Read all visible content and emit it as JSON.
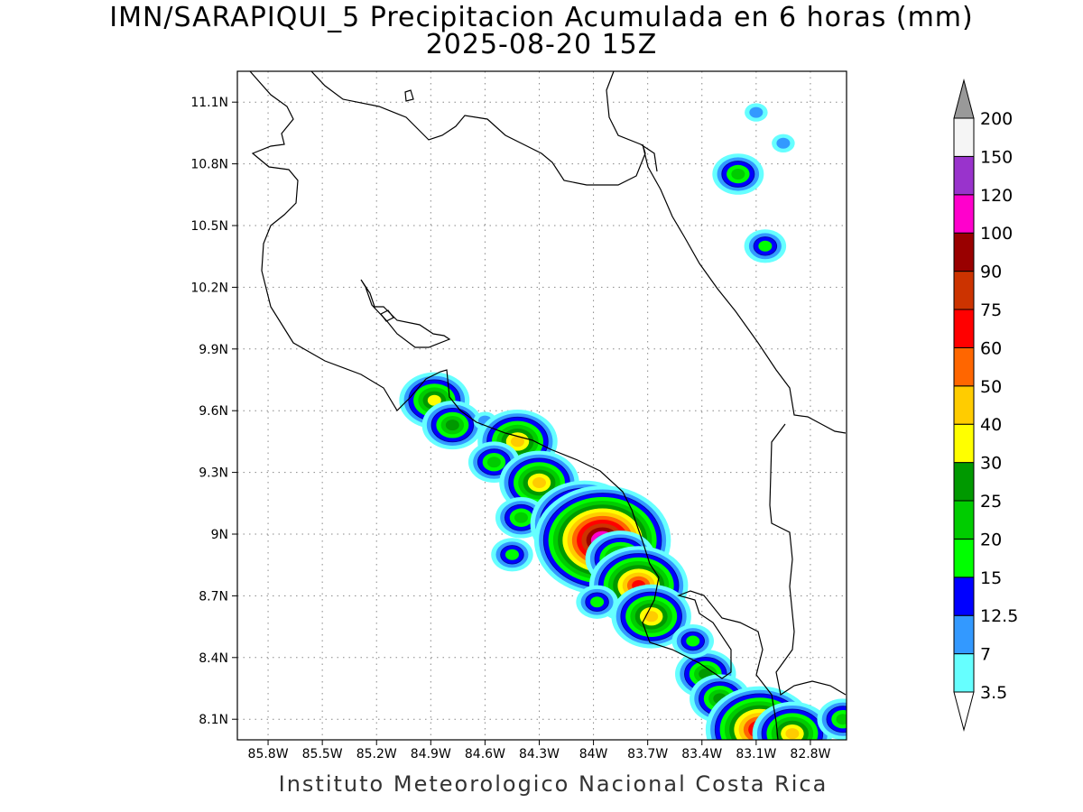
{
  "title": {
    "line1": "IMN/SARAPIQUI_5 Precipitacion Acumulada en 6 horas (mm)",
    "line2": "2025-08-20 15Z"
  },
  "footer": "Instituto Meteorologico Nacional Costa Rica",
  "map": {
    "lon_range": [
      -85.97,
      -82.6
    ],
    "lat_range": [
      8.0,
      11.25
    ],
    "lon_ticks": [
      {
        "lon": -85.8,
        "label": "85.8W"
      },
      {
        "lon": -85.5,
        "label": "85.5W"
      },
      {
        "lon": -85.2,
        "label": "85.2W"
      },
      {
        "lon": -84.9,
        "label": "84.9W"
      },
      {
        "lon": -84.6,
        "label": "84.6W"
      },
      {
        "lon": -84.3,
        "label": "84.3W"
      },
      {
        "lon": -84.0,
        "label": "84W"
      },
      {
        "lon": -83.7,
        "label": "83.7W"
      },
      {
        "lon": -83.4,
        "label": "83.4W"
      },
      {
        "lon": -83.1,
        "label": "83.1W"
      },
      {
        "lon": -82.8,
        "label": "82.8W"
      }
    ],
    "lat_ticks": [
      {
        "lat": 11.1,
        "label": "11.1N"
      },
      {
        "lat": 10.8,
        "label": "10.8N"
      },
      {
        "lat": 10.5,
        "label": "10.5N"
      },
      {
        "lat": 10.2,
        "label": "10.2N"
      },
      {
        "lat": 9.9,
        "label": "9.9N"
      },
      {
        "lat": 9.6,
        "label": "9.6N"
      },
      {
        "lat": 9.3,
        "label": "9.3N"
      },
      {
        "lat": 9.0,
        "label": "9N"
      },
      {
        "lat": 8.7,
        "label": "8.7N"
      },
      {
        "lat": 8.4,
        "label": "8.4N"
      },
      {
        "lat": 8.1,
        "label": "8.1N"
      }
    ],
    "grid": true
  },
  "colorbar": {
    "labels": [
      "3.5",
      "7",
      "12.5",
      "15",
      "20",
      "25",
      "30",
      "40",
      "50",
      "60",
      "75",
      "90",
      "100",
      "120",
      "150",
      "200"
    ],
    "colors": [
      "#66ffff",
      "#3399ff",
      "#0000ff",
      "#00ff00",
      "#00cc00",
      "#009900",
      "#ffff00",
      "#ffcc00",
      "#ff6600",
      "#ff0000",
      "#cc3300",
      "#990000",
      "#ff00cc",
      "#9933cc",
      "#f5f5f5",
      "#999999"
    ]
  },
  "precip_cells": [
    {
      "lon": -84.88,
      "lat": 9.65,
      "mm": 30
    },
    {
      "lon": -84.78,
      "lat": 9.53,
      "mm": 25
    },
    {
      "lon": -84.6,
      "lat": 9.55,
      "mm": 7
    },
    {
      "lon": -84.42,
      "lat": 9.45,
      "mm": 40
    },
    {
      "lon": -84.55,
      "lat": 9.35,
      "mm": 20
    },
    {
      "lon": -84.3,
      "lat": 9.25,
      "mm": 40
    },
    {
      "lon": -84.4,
      "lat": 9.08,
      "mm": 20
    },
    {
      "lon": -84.05,
      "lat": 9.05,
      "mm": 75
    },
    {
      "lon": -83.95,
      "lat": 8.97,
      "mm": 120
    },
    {
      "lon": -83.85,
      "lat": 8.88,
      "mm": 30
    },
    {
      "lon": -83.75,
      "lat": 8.75,
      "mm": 60
    },
    {
      "lon": -83.68,
      "lat": 8.6,
      "mm": 40
    },
    {
      "lon": -84.45,
      "lat": 8.9,
      "mm": 15
    },
    {
      "lon": -83.98,
      "lat": 8.67,
      "mm": 15
    },
    {
      "lon": -83.38,
      "lat": 8.32,
      "mm": 25
    },
    {
      "lon": -83.3,
      "lat": 8.2,
      "mm": 25
    },
    {
      "lon": -83.08,
      "lat": 8.05,
      "mm": 75
    },
    {
      "lon": -82.9,
      "lat": 8.03,
      "mm": 40
    },
    {
      "lon": -82.62,
      "lat": 8.1,
      "mm": 20
    },
    {
      "lon": -83.2,
      "lat": 10.75,
      "mm": 20
    },
    {
      "lon": -83.05,
      "lat": 10.4,
      "mm": 15
    },
    {
      "lon": -83.1,
      "lat": 11.05,
      "mm": 7
    },
    {
      "lon": -82.95,
      "lat": 10.9,
      "mm": 7
    },
    {
      "lon": -83.45,
      "lat": 8.48,
      "mm": 15
    }
  ]
}
